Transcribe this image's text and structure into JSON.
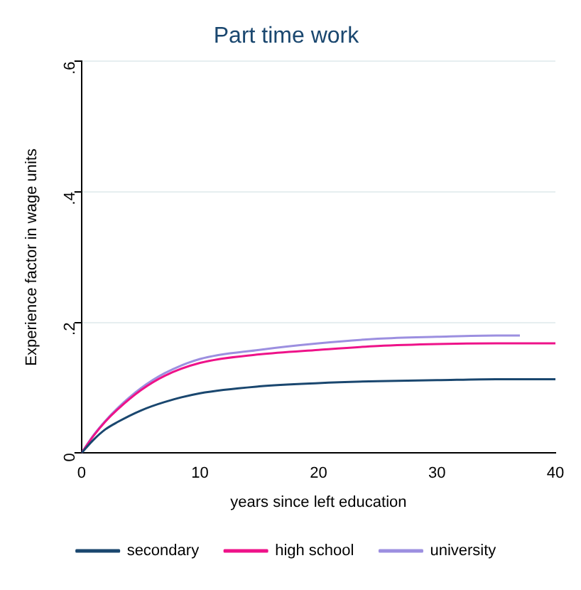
{
  "chart_data": {
    "type": "line",
    "title": "Part time work",
    "xlabel": "years since left education",
    "ylabel": "Experience factor in wage units",
    "xlim": [
      0,
      40
    ],
    "xticks": [
      0,
      10,
      20,
      30,
      40
    ],
    "ylim": [
      0,
      0.6
    ],
    "yticks": [
      {
        "value": 0,
        "label": "0"
      },
      {
        "value": 0.2,
        "label": ".2"
      },
      {
        "value": 0.4,
        "label": ".4"
      },
      {
        "value": 0.6,
        "label": ".6"
      }
    ],
    "grid": "y",
    "legend": "bottom",
    "marker": "none",
    "line_style": "solid",
    "series": [
      {
        "name": "secondary",
        "color": "#1a476f",
        "x": [
          0,
          1,
          2,
          3,
          5,
          7,
          10,
          15,
          20,
          25,
          30,
          35,
          40
        ],
        "values": [
          0,
          0.02,
          0.036,
          0.047,
          0.065,
          0.078,
          0.0915,
          0.102,
          0.107,
          0.11,
          0.1115,
          0.113,
          0.113
        ]
      },
      {
        "name": "high school",
        "color": "#ee1289",
        "x": [
          0,
          1,
          2,
          3,
          5,
          7,
          10,
          15,
          20,
          25,
          30,
          35,
          40
        ],
        "values": [
          0,
          0.026,
          0.048,
          0.066,
          0.096,
          0.118,
          0.138,
          0.151,
          0.158,
          0.164,
          0.167,
          0.168,
          0.168
        ]
      },
      {
        "name": "university",
        "color": "#9c8fe0",
        "x": [
          0,
          1,
          2,
          3,
          5,
          7,
          10,
          15,
          20,
          25,
          30,
          35,
          37
        ],
        "values": [
          0,
          0.027,
          0.049,
          0.068,
          0.099,
          0.122,
          0.144,
          0.158,
          0.168,
          0.175,
          0.178,
          0.18,
          0.18
        ]
      }
    ]
  }
}
